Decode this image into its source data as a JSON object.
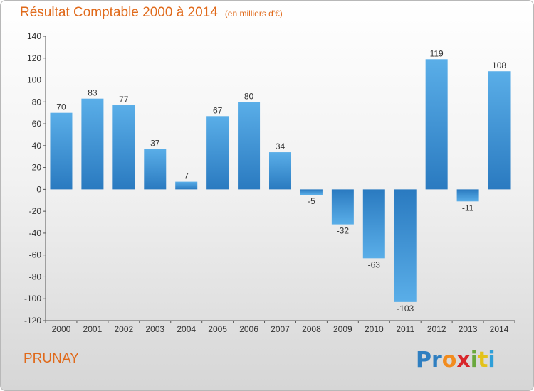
{
  "title": "Résultat Comptable 2000 à 2014",
  "subtitle": "(en milliers d'€)",
  "commune": "PRUNAY",
  "logo": {
    "text": "Proxiti",
    "letters": [
      {
        "ch": "P",
        "color": "#2f7fc1"
      },
      {
        "ch": "r",
        "color": "#2f7fc1"
      },
      {
        "ch": "o",
        "color": "#f28c1e"
      },
      {
        "ch": "x",
        "color": "#d8262b"
      },
      {
        "ch": "i",
        "color": "#6aa83d"
      },
      {
        "ch": "t",
        "color": "#e3c21a"
      },
      {
        "ch": "i",
        "color": "#2f9fd8"
      }
    ]
  },
  "colors": {
    "title": "#e06a1b",
    "bar_light": "#5aaee8",
    "bar_dark": "#2a7ac0",
    "axis": "#555555"
  },
  "chart_data": {
    "type": "bar",
    "categories": [
      "2000",
      "2001",
      "2002",
      "2003",
      "2004",
      "2005",
      "2006",
      "2007",
      "2008",
      "2009",
      "2010",
      "2011",
      "2012",
      "2013",
      "2014"
    ],
    "values": [
      70,
      83,
      77,
      37,
      7,
      67,
      80,
      34,
      -5,
      -32,
      -63,
      -103,
      119,
      -11,
      108
    ],
    "value_labels": [
      "70",
      "83",
      "77",
      "37",
      "7",
      "67",
      "80",
      "34",
      "-5",
      "-32",
      "-63",
      "-103",
      "119",
      "-11",
      "108"
    ],
    "ylim": [
      -120,
      140
    ],
    "yticks": [
      -120,
      -100,
      -80,
      -60,
      -40,
      -20,
      0,
      20,
      40,
      60,
      80,
      100,
      120,
      140
    ],
    "ytick_labels": [
      "-120",
      "-100",
      "-80",
      "-60",
      "-40",
      "-20",
      "0",
      "20",
      "40",
      "60",
      "80",
      "100",
      "120",
      "140"
    ],
    "grid": false,
    "legend": "none"
  }
}
